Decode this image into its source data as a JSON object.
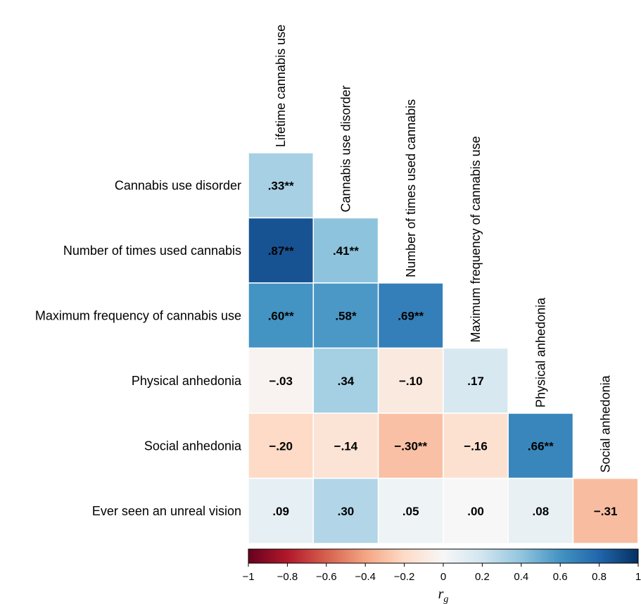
{
  "chart_data": {
    "type": "heatmap",
    "layout": "lower-triangular correlation matrix",
    "rows": [
      "Cannabis use disorder",
      "Number of times used cannabis",
      "Maximum frequency of cannabis use",
      "Physical anhedonia",
      "Social anhedonia",
      "Ever seen an unreal vision"
    ],
    "columns": [
      "Lifetime cannabis use",
      "Cannabis use disorder",
      "Number of times used cannabis",
      "Maximum frequency of cannabis use",
      "Physical anhedonia",
      "Social anhedonia"
    ],
    "values": [
      [
        0.33,
        null,
        null,
        null,
        null,
        null
      ],
      [
        0.87,
        0.41,
        null,
        null,
        null,
        null
      ],
      [
        0.6,
        0.58,
        0.69,
        null,
        null,
        null
      ],
      [
        -0.03,
        0.34,
        -0.1,
        0.17,
        null,
        null
      ],
      [
        -0.2,
        -0.14,
        -0.3,
        -0.16,
        0.66,
        null
      ],
      [
        0.09,
        0.3,
        0.05,
        0.0,
        0.08,
        -0.31
      ]
    ],
    "labels": [
      [
        ".33**",
        null,
        null,
        null,
        null,
        null
      ],
      [
        ".87**",
        ".41**",
        null,
        null,
        null,
        null
      ],
      [
        ".60**",
        ".58*",
        ".69**",
        null,
        null,
        null
      ],
      [
        "−.03",
        ".34",
        "−.10",
        ".17",
        null,
        null
      ],
      [
        "−.20",
        "−.14",
        "−.30**",
        "−.16",
        ".66**",
        null
      ],
      [
        ".09",
        ".30",
        ".05",
        ".00",
        ".08",
        "−.31"
      ]
    ],
    "colorbar": {
      "colormap": "RdBu",
      "range": [
        -1,
        1
      ],
      "ticks": [
        -1,
        -0.8,
        -0.6,
        -0.4,
        -0.2,
        0,
        0.2,
        0.4,
        0.6,
        0.8,
        1
      ],
      "tick_labels": [
        "−1",
        "−0.8",
        "−0.6",
        "−0.4",
        "−0.2",
        "0",
        "0.2",
        "0.4",
        "0.6",
        "0.8",
        "1"
      ],
      "label_main": "r",
      "label_sub": "g",
      "orientation": "horizontal",
      "placement": "bottom"
    }
  }
}
